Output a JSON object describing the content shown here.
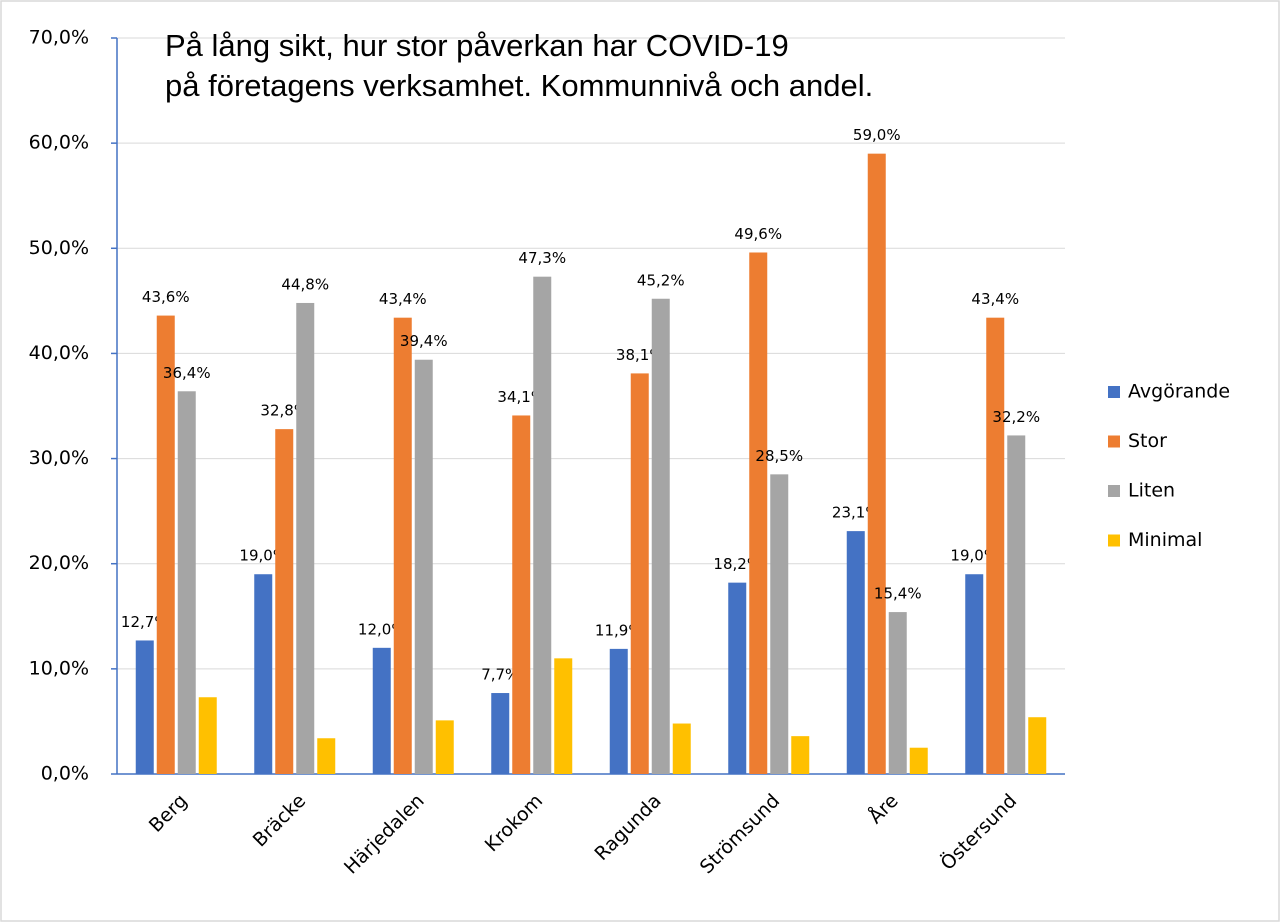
{
  "chart_data": {
    "type": "bar",
    "title": [
      "På lång sikt, hur stor påverkan har COVID-19",
      "på företagens verksamhet. Kommunnivå och andel."
    ],
    "categories": [
      "Berg",
      "Bräcke",
      "Härjedalen",
      "Krokom",
      "Ragunda",
      "Strömsund",
      "Åre",
      "Östersund"
    ],
    "series": [
      {
        "name": "Avgörande",
        "color": "#4472c4",
        "values": [
          12.7,
          19.0,
          12.0,
          7.7,
          11.9,
          18.2,
          23.1,
          19.0
        ],
        "value_labels": [
          "12,7%",
          "19,0%",
          "12,0%",
          "7,7%",
          "11,9%",
          "18,2%",
          "23,1%",
          "19,0%"
        ]
      },
      {
        "name": "Stor",
        "color": "#ed7d31",
        "values": [
          43.6,
          32.8,
          43.4,
          34.1,
          38.1,
          49.6,
          59.0,
          43.4
        ],
        "value_labels": [
          "43,6%",
          "32,8%",
          "43,4%",
          "34,1%",
          "38,1%",
          "49,6%",
          "59,0%",
          "43,4%"
        ]
      },
      {
        "name": "Liten",
        "color": "#a5a5a5",
        "values": [
          36.4,
          44.8,
          39.4,
          47.3,
          45.2,
          28.5,
          15.4,
          32.2
        ],
        "value_labels": [
          "36,4%",
          "44,8%",
          "39,4%",
          "47,3%",
          "45,2%",
          "28,5%",
          "15,4%",
          "32,2%"
        ]
      },
      {
        "name": "Minimal",
        "color": "#ffc000",
        "values": [
          7.3,
          3.4,
          5.1,
          11.0,
          4.8,
          3.6,
          2.5,
          5.4
        ]
      }
    ],
    "ylim": [
      0,
      70
    ],
    "yticks": [
      {
        "value": 0,
        "label": "0,0%"
      },
      {
        "value": 10,
        "label": "10,0%"
      },
      {
        "value": 20,
        "label": "20,0%"
      },
      {
        "value": 30,
        "label": "30,0%"
      },
      {
        "value": 40,
        "label": "40,0%"
      },
      {
        "value": 50,
        "label": "50,0%"
      },
      {
        "value": 60,
        "label": "60,0%"
      },
      {
        "value": 70,
        "label": "70,0%"
      }
    ],
    "grid": true,
    "legend": "right"
  }
}
